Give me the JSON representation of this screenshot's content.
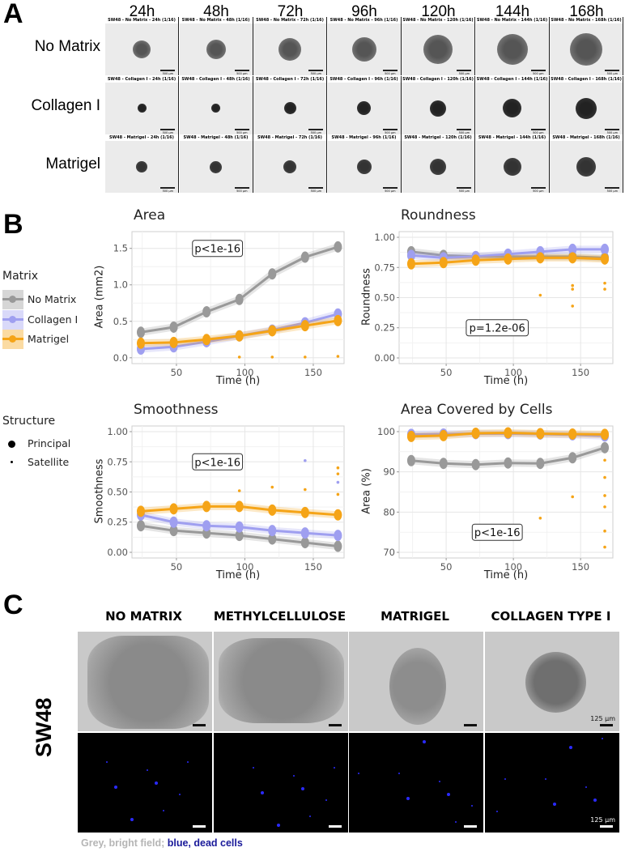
{
  "panel_labels": {
    "a": "A",
    "b": "B",
    "c": "C"
  },
  "panel_a": {
    "timepoints": [
      "24h",
      "48h",
      "72h",
      "96h",
      "120h",
      "144h",
      "168h"
    ],
    "scale_bar": "500 µm",
    "rows": [
      {
        "label": "No Matrix",
        "captions": [
          "SW48 - No Matrix - 24h (1/16)",
          "SW48 - No Matrix - 48h (1/16)",
          "SW48 - No Matrix - 72h (1/16)",
          "SW48 - No Matrix - 96h (1/16)",
          "SW48 - No Matrix - 120h (1/16)",
          "SW48 - No Matrix - 144h (1/16)",
          "SW48 - No Matrix - 168h (1/16)"
        ]
      },
      {
        "label": "Collagen I",
        "captions": [
          "SW48 - Collagen I - 24h (1/16)",
          "SW48 - Collagen I - 48h (1/16)",
          "SW48 - Collagen I - 72h (1/16)",
          "SW48 - Collagen I - 96h (1/16)",
          "SW48 - Collagen I - 120h (1/16)",
          "SW48 - Collagen I - 144h (1/16)",
          "SW48 - Collagen I - 168h (1/16)"
        ]
      },
      {
        "label": "Matrigel",
        "captions": [
          "SW48 - Matrigel - 24h (1/16)",
          "SW48 - Matrigel - 48h (1/16)",
          "SW48 - Matrigel - 72h (1/16)",
          "SW48 - Matrigel - 96h (1/16)",
          "SW48 - Matrigel - 120h (1/16)",
          "SW48 - Matrigel - 144h (1/16)",
          "SW48 - Matrigel - 168h (1/16)"
        ]
      }
    ]
  },
  "legend": {
    "matrix_title": "Matrix",
    "matrix_items": [
      {
        "label": "No Matrix",
        "color": "#999999"
      },
      {
        "label": "Collagen I",
        "color": "#9f9ff0"
      },
      {
        "label": "Matrigel",
        "color": "#f5a417"
      }
    ],
    "structure_title": "Structure",
    "structure_items": [
      {
        "label": "Principal"
      },
      {
        "label": "Satellite"
      }
    ]
  },
  "chart_data": [
    {
      "type": "line",
      "title": "Area",
      "xlabel": "Time (h)",
      "ylabel": "Area (mm2)",
      "xlim": [
        17.5,
        172.5
      ],
      "ylim": [
        -0.08,
        1.73
      ],
      "xticks": [
        50,
        100,
        150
      ],
      "yticks": [
        0.0,
        0.5,
        1.0,
        1.5
      ],
      "ytick_labels": [
        "0.0",
        "0.5",
        "1.0",
        "1.5"
      ],
      "grid": true,
      "annotation": {
        "text": "p<1e-16",
        "x": 80,
        "y": 1.5
      },
      "x": [
        24,
        48,
        72,
        96,
        120,
        144,
        168
      ],
      "series": [
        {
          "name": "No Matrix",
          "values": [
            0.35,
            0.42,
            0.63,
            0.8,
            1.15,
            1.38,
            1.52
          ]
        },
        {
          "name": "Collagen I",
          "values": [
            0.12,
            0.15,
            0.22,
            0.3,
            0.38,
            0.48,
            0.6
          ]
        },
        {
          "name": "Matrigel",
          "values": [
            0.2,
            0.21,
            0.25,
            0.3,
            0.37,
            0.44,
            0.51
          ]
        }
      ],
      "satellite": [
        {
          "series": "Matrigel",
          "points": [
            [
              96,
              0.01
            ],
            [
              120,
              0.01
            ],
            [
              144,
              0.01
            ],
            [
              168,
              0.02
            ]
          ]
        }
      ]
    },
    {
      "type": "line",
      "title": "Roundness",
      "xlabel": "Time (h)",
      "ylabel": "Roundness",
      "xlim": [
        15,
        174
      ],
      "ylim": [
        -0.047,
        1.047
      ],
      "xticks": [
        50,
        100,
        150
      ],
      "yticks": [
        0,
        0.25,
        0.5,
        0.75,
        1
      ],
      "ytick_labels": [
        "0.00",
        "0.25",
        "0.50",
        "0.75",
        "1.00"
      ],
      "grid": true,
      "annotation": {
        "text": "p=1.2e-06",
        "x": 88,
        "y": 0.25
      },
      "x": [
        24,
        48,
        72,
        96,
        120,
        144,
        168
      ],
      "series": [
        {
          "name": "No Matrix",
          "values": [
            0.88,
            0.85,
            0.84,
            0.84,
            0.84,
            0.84,
            0.83
          ]
        },
        {
          "name": "Collagen I",
          "values": [
            0.85,
            0.83,
            0.84,
            0.86,
            0.88,
            0.9,
            0.9
          ]
        },
        {
          "name": "Matrigel",
          "values": [
            0.78,
            0.79,
            0.81,
            0.82,
            0.83,
            0.83,
            0.82
          ]
        }
      ],
      "satellite": [
        {
          "series": "Matrigel",
          "points": [
            [
              120,
              0.52
            ],
            [
              144,
              0.43
            ],
            [
              144,
              0.57
            ],
            [
              144,
              0.6
            ],
            [
              168,
              0.57
            ],
            [
              168,
              0.62
            ]
          ]
        }
      ]
    },
    {
      "type": "line",
      "title": "Smoothness",
      "xlabel": "Time (h)",
      "ylabel": "Smoothness",
      "xlim": [
        17.5,
        172.5
      ],
      "ylim": [
        -0.047,
        1.047
      ],
      "xticks": [
        50,
        100,
        150
      ],
      "yticks": [
        0,
        0.25,
        0.5,
        0.75,
        1
      ],
      "ytick_labels": [
        "0.00",
        "0.25",
        "0.50",
        "0.75",
        "1.00"
      ],
      "grid": true,
      "annotation": {
        "text": "p<1e-16",
        "x": 80,
        "y": 0.75
      },
      "x": [
        24,
        48,
        72,
        96,
        120,
        144,
        168
      ],
      "series": [
        {
          "name": "No Matrix",
          "values": [
            0.22,
            0.18,
            0.16,
            0.14,
            0.11,
            0.08,
            0.05
          ]
        },
        {
          "name": "Collagen I",
          "values": [
            0.31,
            0.25,
            0.22,
            0.21,
            0.18,
            0.16,
            0.14
          ]
        },
        {
          "name": "Matrigel",
          "values": [
            0.34,
            0.36,
            0.38,
            0.38,
            0.35,
            0.33,
            0.31
          ]
        }
      ],
      "satellite": [
        {
          "series": "Matrigel",
          "points": [
            [
              96,
              0.51
            ],
            [
              120,
              0.54
            ],
            [
              144,
              0.52
            ],
            [
              168,
              0.7
            ],
            [
              168,
              0.65
            ],
            [
              168,
              0.48
            ]
          ]
        },
        {
          "series": "Collagen I",
          "points": [
            [
              144,
              0.76
            ],
            [
              168,
              0.58
            ]
          ]
        }
      ]
    },
    {
      "type": "line",
      "title": "Area Covered by Cells",
      "xlabel": "Time (h)",
      "ylabel": "Area (%)",
      "xlim": [
        15,
        174
      ],
      "ylim": [
        68.6,
        101.4
      ],
      "xticks": [
        50,
        100,
        150
      ],
      "yticks": [
        70,
        80,
        90,
        100
      ],
      "ytick_labels": [
        "70",
        "80",
        "90",
        "100"
      ],
      "grid": true,
      "annotation": {
        "text": "p<1e-16",
        "x": 88,
        "y": 75
      },
      "x": [
        24,
        48,
        72,
        96,
        120,
        144,
        168
      ],
      "series": [
        {
          "name": "No Matrix",
          "values": [
            92.8,
            92.1,
            91.8,
            92.2,
            92.1,
            93.5,
            96.0
          ]
        },
        {
          "name": "Collagen I",
          "values": [
            99.3,
            99.4,
            99.5,
            99.5,
            99.4,
            99.2,
            98.9
          ]
        },
        {
          "name": "Matrigel",
          "values": [
            98.8,
            99.0,
            99.6,
            99.7,
            99.5,
            99.4,
            99.3
          ]
        }
      ],
      "satellite": [
        {
          "series": "Matrigel",
          "points": [
            [
              120,
              78.5
            ],
            [
              144,
              83.8
            ],
            [
              168,
              92.9
            ],
            [
              168,
              88.6
            ],
            [
              168,
              84.1
            ],
            [
              168,
              81.3
            ],
            [
              168,
              75.3
            ],
            [
              168,
              71.3
            ]
          ]
        }
      ]
    }
  ],
  "panel_c": {
    "headers": [
      "NO MATRIX",
      "METHYLCELLULOSE",
      "MATRIGEL",
      "COLLAGEN TYPE I"
    ],
    "row_label": "SW48",
    "scale_bar": "125 µm",
    "caption_grey": "Grey, bright field;",
    "caption_blue": "blue, dead cells"
  }
}
